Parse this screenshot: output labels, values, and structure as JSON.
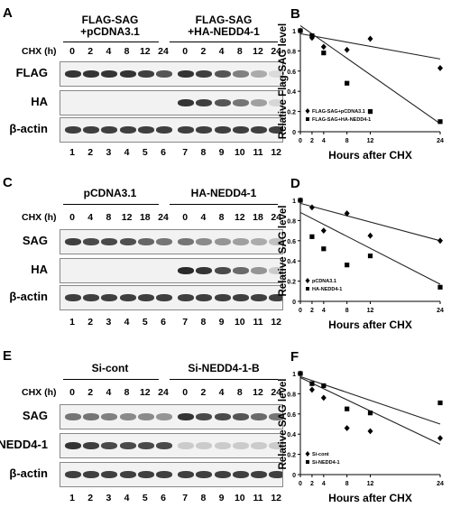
{
  "panels": [
    {
      "label": "A",
      "conditions": [
        "FLAG-SAG\n+pCDNA3.1",
        "FLAG-SAG\n+HA-NEDD4-1"
      ],
      "cycloheximide_label": "CHX (h)",
      "timepoints": [
        "0",
        "2",
        "4",
        "8",
        "12",
        "24",
        "0",
        "2",
        "4",
        "8",
        "12",
        "24"
      ],
      "rows": [
        {
          "name": "FLAG",
          "intensity": [
            0.85,
            0.85,
            0.85,
            0.85,
            0.8,
            0.7,
            0.85,
            0.8,
            0.7,
            0.5,
            0.3,
            0.08
          ]
        },
        {
          "name": "HA",
          "intensity": [
            0,
            0,
            0,
            0,
            0,
            0,
            0.85,
            0.8,
            0.7,
            0.55,
            0.35,
            0.1
          ]
        },
        {
          "name": "β-actin",
          "intensity": [
            0.8,
            0.8,
            0.8,
            0.8,
            0.8,
            0.8,
            0.8,
            0.8,
            0.8,
            0.8,
            0.8,
            0.8
          ]
        }
      ],
      "lanes": [
        "1",
        "2",
        "3",
        "4",
        "5",
        "6",
        "7",
        "8",
        "9",
        "10",
        "11",
        "12"
      ]
    },
    {
      "label": "C",
      "conditions": [
        "pCDNA3.1",
        "HA-NEDD4-1"
      ],
      "cycloheximide_label": "CHX (h)",
      "timepoints": [
        "0",
        "4",
        "8",
        "12",
        "18",
        "24",
        "0",
        "4",
        "8",
        "12",
        "18",
        "24"
      ],
      "rows": [
        {
          "name": "SAG",
          "intensity": [
            0.8,
            0.75,
            0.75,
            0.72,
            0.62,
            0.55,
            0.55,
            0.45,
            0.4,
            0.35,
            0.3,
            0.2
          ]
        },
        {
          "name": "HA",
          "intensity": [
            0,
            0,
            0,
            0,
            0,
            0,
            0.9,
            0.85,
            0.75,
            0.6,
            0.4,
            0.15
          ]
        },
        {
          "name": "β-actin",
          "intensity": [
            0.8,
            0.8,
            0.8,
            0.8,
            0.8,
            0.8,
            0.8,
            0.8,
            0.8,
            0.8,
            0.8,
            0.8
          ]
        }
      ],
      "lanes": [
        "1",
        "2",
        "3",
        "4",
        "5",
        "6",
        "7",
        "8",
        "9",
        "10",
        "11",
        "12"
      ]
    },
    {
      "label": "E",
      "conditions": [
        "Si-cont",
        "Si-NEDD4-1-B"
      ],
      "cycloheximide_label": "CHX (h)",
      "timepoints": [
        "0",
        "2",
        "4",
        "8",
        "12",
        "24",
        "0",
        "2",
        "4",
        "8",
        "12",
        "24"
      ],
      "rows": [
        {
          "name": "SAG",
          "intensity": [
            0.55,
            0.55,
            0.5,
            0.45,
            0.45,
            0.4,
            0.85,
            0.75,
            0.75,
            0.7,
            0.6,
            0.55
          ]
        },
        {
          "name": "NEDD4-1",
          "intensity": [
            0.85,
            0.8,
            0.75,
            0.75,
            0.75,
            0.75,
            0.15,
            0.15,
            0.15,
            0.15,
            0.15,
            0.15
          ]
        },
        {
          "name": "β-actin",
          "intensity": [
            0.8,
            0.8,
            0.8,
            0.8,
            0.8,
            0.8,
            0.8,
            0.8,
            0.8,
            0.8,
            0.8,
            0.8
          ]
        }
      ],
      "lanes": [
        "1",
        "2",
        "3",
        "4",
        "5",
        "6",
        "7",
        "8",
        "9",
        "10",
        "11",
        "12"
      ]
    }
  ],
  "chart_data": [
    {
      "label": "B",
      "type": "scatter",
      "ylabel": "Relative Flag-SAG level",
      "xlabel": "Hours after CHX",
      "x_ticks": [
        "0",
        "2",
        "4",
        "8",
        "12",
        "24"
      ],
      "xlim": [
        0,
        24
      ],
      "ylim": [
        0,
        1
      ],
      "y_ticks": [
        "0",
        "0.2",
        "0.4",
        "0.6",
        "0.8",
        "1"
      ],
      "grid": false,
      "legend": "bottom-left",
      "series": [
        {
          "name": "FLAG-SAG+pCDNA3.1",
          "marker": "diamond",
          "x": [
            0,
            2,
            4,
            8,
            12,
            24
          ],
          "y": [
            1.0,
            0.93,
            0.84,
            0.81,
            0.92,
            0.63
          ],
          "trend": [
            0.97,
            0.72
          ]
        },
        {
          "name": "FLAG-SAG+HA-NEDD4-1",
          "marker": "square",
          "x": [
            0,
            2,
            4,
            8,
            12,
            24
          ],
          "y": [
            1.0,
            0.95,
            0.78,
            0.48,
            0.2,
            0.1
          ],
          "trend": [
            1.05,
            0.08
          ]
        }
      ]
    },
    {
      "label": "D",
      "type": "scatter",
      "ylabel": "Relative SAG level",
      "xlabel": "Hours after CHX",
      "x_ticks": [
        "0",
        "2",
        "4",
        "8",
        "12",
        "24"
      ],
      "xlim": [
        0,
        24
      ],
      "ylim": [
        0,
        1
      ],
      "y_ticks": [
        "0",
        "0.2",
        "0.4",
        "0.6",
        "0.8",
        "1"
      ],
      "grid": false,
      "legend": "bottom-left",
      "series": [
        {
          "name": "pCDNA3.1",
          "marker": "diamond",
          "x": [
            0,
            2,
            4,
            8,
            12,
            24
          ],
          "y": [
            1.0,
            0.93,
            0.7,
            0.87,
            0.65,
            0.6
          ],
          "trend": [
            0.97,
            0.6
          ]
        },
        {
          "name": "HA-NEDD4-1",
          "marker": "square",
          "x": [
            0,
            2,
            4,
            8,
            12,
            24
          ],
          "y": [
            1.0,
            0.64,
            0.52,
            0.36,
            0.45,
            0.14
          ],
          "trend": [
            0.88,
            0.17
          ]
        }
      ]
    },
    {
      "label": "F",
      "type": "scatter",
      "ylabel": "Relative SAG level",
      "xlabel": "Hours after CHX",
      "x_ticks": [
        "0",
        "2",
        "4",
        "8",
        "12",
        "24"
      ],
      "xlim": [
        0,
        24
      ],
      "ylim": [
        0,
        1
      ],
      "y_ticks": [
        "0",
        "0.2",
        "0.4",
        "0.6",
        "0.8",
        "1"
      ],
      "grid": false,
      "legend": "bottom-left",
      "series": [
        {
          "name": "Si-cont",
          "marker": "diamond",
          "x": [
            0,
            2,
            4,
            8,
            12,
            24
          ],
          "y": [
            1.0,
            0.84,
            0.76,
            0.46,
            0.43,
            0.36
          ],
          "trend": [
            0.96,
            0.3
          ]
        },
        {
          "name": "Si-NEDD4-1",
          "marker": "square",
          "x": [
            0,
            2,
            4,
            8,
            12,
            24
          ],
          "y": [
            1.0,
            0.9,
            0.88,
            0.65,
            0.61,
            0.71
          ],
          "trend": [
            0.97,
            0.5
          ]
        }
      ]
    }
  ]
}
